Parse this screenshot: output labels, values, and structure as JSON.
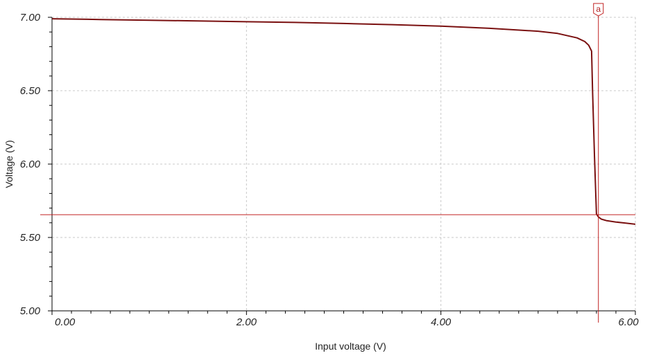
{
  "chart_data": {
    "type": "line",
    "title": "",
    "xlabel": "Input voltage (V)",
    "ylabel": "Voltage (V)",
    "xlim": [
      0,
      6
    ],
    "ylim": [
      5,
      7
    ],
    "x_ticks": [
      "0.00",
      "2.00",
      "4.00",
      "6.00"
    ],
    "y_ticks": [
      "5.00",
      "5.50",
      "6.00",
      "6.50",
      "7.00"
    ],
    "grid": true,
    "series": [
      {
        "color": "#7a1010",
        "x": [
          0.0,
          0.5,
          1.0,
          1.5,
          2.0,
          2.5,
          3.0,
          3.5,
          4.0,
          4.5,
          5.0,
          5.2,
          5.4,
          5.48,
          5.52,
          5.55,
          5.56,
          5.58,
          5.6,
          5.62,
          5.65,
          5.7,
          5.8,
          5.9,
          6.0
        ],
        "y": [
          6.99,
          6.985,
          6.98,
          6.975,
          6.97,
          6.965,
          6.958,
          6.95,
          6.94,
          6.925,
          6.905,
          6.89,
          6.86,
          6.835,
          6.81,
          6.77,
          6.5,
          6.05,
          5.66,
          5.64,
          5.625,
          5.615,
          5.605,
          5.598,
          5.59
        ]
      }
    ],
    "cursor": {
      "label": "a",
      "x": 5.62,
      "y": 5.655,
      "color": "#c02020"
    }
  }
}
